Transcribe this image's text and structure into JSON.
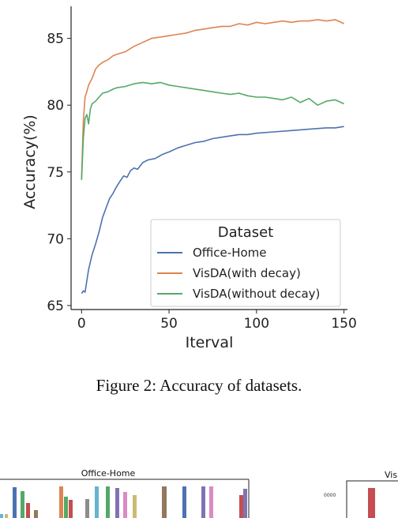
{
  "chart_data": {
    "type": "line",
    "xlabel": "Iterval",
    "ylabel": "Accuracy(%)",
    "xlim": [
      -6,
      152
    ],
    "ylim": [
      64.7,
      87.4
    ],
    "xticks": [
      0,
      50,
      100,
      150
    ],
    "yticks": [
      65,
      70,
      75,
      80,
      85
    ],
    "grid": false,
    "legend": {
      "title": "Dataset",
      "placement": "bottom-right"
    },
    "series": [
      {
        "name": "Office-Home",
        "color": "#4c72b0",
        "x": [
          0,
          1,
          2,
          4,
          6,
          8,
          10,
          12,
          14,
          16,
          18,
          20,
          22,
          24,
          26,
          28,
          30,
          32,
          35,
          38,
          42,
          46,
          50,
          55,
          60,
          65,
          70,
          75,
          80,
          85,
          90,
          95,
          100,
          110,
          120,
          130,
          140,
          145,
          150
        ],
        "y": [
          65.9,
          66.1,
          66.0,
          67.7,
          68.8,
          69.6,
          70.5,
          71.6,
          72.3,
          73.0,
          73.4,
          73.9,
          74.3,
          74.7,
          74.6,
          75.1,
          75.3,
          75.2,
          75.7,
          75.9,
          76.0,
          76.3,
          76.5,
          76.8,
          77.0,
          77.2,
          77.3,
          77.5,
          77.6,
          77.7,
          77.8,
          77.8,
          77.9,
          78.0,
          78.1,
          78.2,
          78.3,
          78.3,
          78.4
        ]
      },
      {
        "name": "VisDA(with decay)",
        "color": "#dd8452",
        "x": [
          0,
          1,
          2,
          3,
          4,
          6,
          8,
          10,
          12,
          15,
          18,
          20,
          25,
          30,
          35,
          40,
          45,
          50,
          55,
          60,
          65,
          70,
          75,
          80,
          85,
          90,
          95,
          100,
          105,
          110,
          115,
          120,
          125,
          130,
          135,
          140,
          145,
          150
        ],
        "y": [
          74.5,
          78.8,
          80.6,
          81.0,
          81.5,
          82.0,
          82.7,
          83.0,
          83.2,
          83.4,
          83.7,
          83.8,
          84.0,
          84.4,
          84.7,
          85.0,
          85.1,
          85.2,
          85.3,
          85.4,
          85.6,
          85.7,
          85.8,
          85.9,
          85.9,
          86.1,
          86.0,
          86.2,
          86.1,
          86.2,
          86.3,
          86.2,
          86.3,
          86.3,
          86.4,
          86.3,
          86.4,
          86.1
        ]
      },
      {
        "name": "VisDA(without decay)",
        "color": "#55a868",
        "x": [
          0,
          1,
          2,
          3,
          4,
          5,
          6,
          8,
          10,
          12,
          15,
          18,
          20,
          25,
          30,
          35,
          40,
          45,
          50,
          55,
          60,
          65,
          70,
          75,
          80,
          85,
          90,
          95,
          100,
          105,
          110,
          115,
          120,
          125,
          130,
          135,
          140,
          145,
          150
        ],
        "y": [
          74.4,
          77.5,
          79.0,
          79.3,
          78.6,
          79.7,
          80.1,
          80.3,
          80.6,
          80.9,
          81.0,
          81.2,
          81.3,
          81.4,
          81.6,
          81.7,
          81.6,
          81.7,
          81.5,
          81.4,
          81.3,
          81.2,
          81.1,
          81.0,
          80.9,
          80.8,
          80.9,
          80.7,
          80.6,
          80.6,
          80.5,
          80.4,
          80.6,
          80.2,
          80.5,
          80.0,
          80.3,
          80.4,
          80.1
        ]
      }
    ]
  },
  "caption": "Figure 2: Accuracy of datasets.",
  "bottom_strip": {
    "left_title": "Office-Home",
    "right_title": "Visl",
    "right_tick": "0000",
    "bar_colors": [
      "#4c72b0",
      "#dd8452",
      "#55a868",
      "#c44e52",
      "#8172b3",
      "#937860",
      "#da8bc3",
      "#8c8c8c",
      "#ccb974",
      "#64b5cd"
    ]
  }
}
